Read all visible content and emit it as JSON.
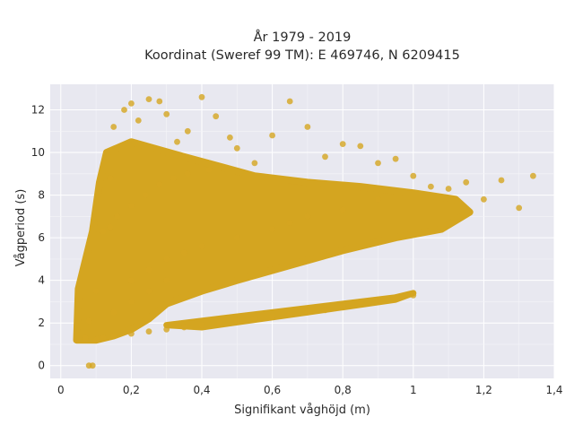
{
  "chart_data": {
    "type": "scatter",
    "title_lines": [
      "År 1979 - 2019",
      "Koordinat (Sweref 99 TM): E 469746, N 6209415"
    ],
    "xlabel": "Signifikant våghöjd (m)",
    "ylabel": "Vågperiod (s)",
    "xlim": [
      -0.03,
      1.4
    ],
    "ylim": [
      -0.6,
      13.2
    ],
    "x_ticks": [
      0,
      0.2,
      0.4,
      0.6,
      0.8,
      1,
      1.2,
      1.4
    ],
    "x_tick_labels": [
      "0",
      "0,2",
      "0,4",
      "0,6",
      "0,8",
      "1",
      "1,2",
      "1,4"
    ],
    "y_ticks": [
      0,
      2,
      4,
      6,
      8,
      10,
      12
    ],
    "y_tick_labels": [
      "0",
      "2",
      "4",
      "6",
      "8",
      "10",
      "12"
    ],
    "grid": true,
    "marker_color": "#D4A520",
    "background_color": "#E8E8F0",
    "points_x": [
      0.07,
      0.08,
      0.1,
      0.12,
      0.14,
      0.15,
      0.18,
      0.2,
      0.22,
      0.25,
      0.28,
      0.3,
      0.33,
      0.36,
      0.4,
      0.44,
      0.48,
      0.5,
      0.55,
      0.6,
      0.65,
      0.7,
      0.75,
      0.8,
      0.85,
      0.9,
      0.95,
      1.0,
      1.05,
      1.1,
      1.15,
      1.2,
      1.25,
      1.3,
      1.34,
      0.1,
      0.12,
      0.15,
      0.2,
      0.25,
      0.3,
      0.35,
      0.4,
      0.45,
      0.5,
      0.55,
      0.6,
      0.65,
      0.7,
      0.75,
      0.8,
      0.85,
      0.9,
      0.95,
      1.0,
      0.14,
      0.16,
      0.2,
      0.24,
      0.28,
      0.32,
      0.36,
      0.42,
      0.2,
      0.25,
      0.3,
      0.35,
      0.4,
      0.5,
      0.6,
      0.65,
      0.7,
      0.8,
      0.9,
      0.15,
      0.2,
      0.25,
      0.3,
      0.08,
      0.09
    ],
    "points_y": [
      1.3,
      2.1,
      3.5,
      6.3,
      8.8,
      11.2,
      12.0,
      12.3,
      11.5,
      12.5,
      12.4,
      11.8,
      10.5,
      11.0,
      12.6,
      11.7,
      10.7,
      10.2,
      9.5,
      10.8,
      12.4,
      11.2,
      9.8,
      10.4,
      10.3,
      9.5,
      9.7,
      8.9,
      8.4,
      8.3,
      8.6,
      7.8,
      8.7,
      7.4,
      8.9,
      1.2,
      1.3,
      1.4,
      1.5,
      1.6,
      1.7,
      1.8,
      1.9,
      2.0,
      2.1,
      2.2,
      2.3,
      2.4,
      2.5,
      2.6,
      2.8,
      3.0,
      3.1,
      3.2,
      3.3,
      6.5,
      7.0,
      7.5,
      8.0,
      8.5,
      8.8,
      9.0,
      9.2,
      4.0,
      4.5,
      5.0,
      5.3,
      5.6,
      6.0,
      6.4,
      6.7,
      7.0,
      7.3,
      7.8,
      2.5,
      3.0,
      3.5,
      4.0,
      0.0,
      0.0
    ]
  }
}
